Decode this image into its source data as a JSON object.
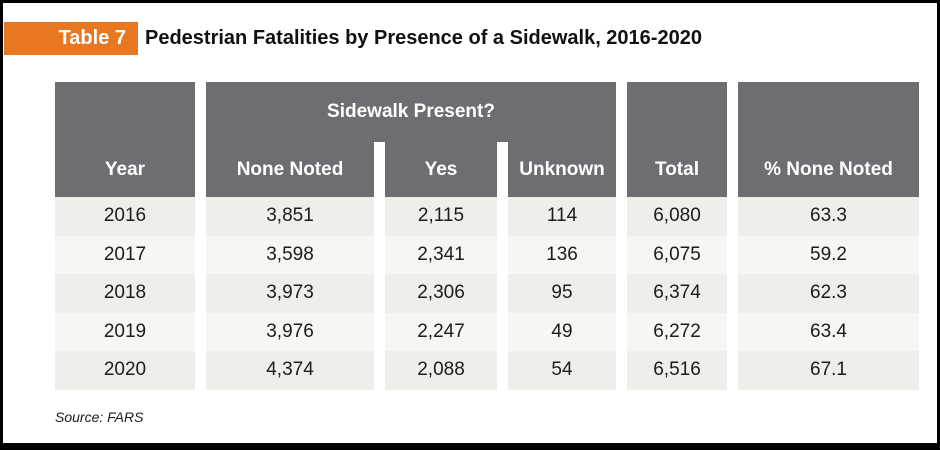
{
  "page": {
    "badge_label": "Table 7",
    "title": "Pedestrian Fatalities by Presence of a Sidewalk, 2016-2020",
    "source_note": "Source: FARS"
  },
  "table": {
    "group_header": "Sidewalk Present?",
    "columns": [
      "Year",
      "None Noted",
      "Yes",
      "Unknown",
      "Total",
      "% None Noted"
    ],
    "rows": [
      [
        "2016",
        "3,851",
        "2,115",
        "114",
        "6,080",
        "63.3"
      ],
      [
        "2017",
        "3,598",
        "2,341",
        "136",
        "6,075",
        "59.2"
      ],
      [
        "2018",
        "3,973",
        "2,306",
        "95",
        "6,374",
        "62.3"
      ],
      [
        "2019",
        "3,976",
        "2,247",
        "49",
        "6,272",
        "63.4"
      ],
      [
        "2020",
        "4,374",
        "2,088",
        "54",
        "6,516",
        "67.1"
      ]
    ]
  },
  "colors": {
    "badge_orange": "#e87722",
    "header_gray": "#6d6e71",
    "row_shade_dark": "#efeeea",
    "row_shade_light": "#f6f6f2",
    "border_black": "#000000"
  }
}
